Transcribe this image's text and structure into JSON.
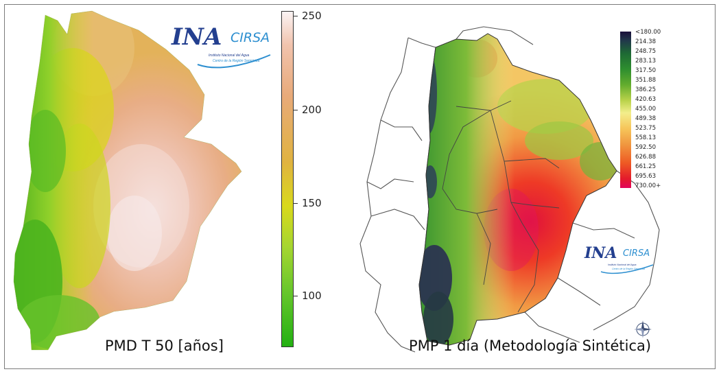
{
  "left_panel": {
    "caption": "PMD T 50 [años]",
    "colorbar": {
      "ticks": [
        "250",
        "200",
        "150",
        "100"
      ],
      "tick_values": [
        250,
        200,
        150,
        100
      ],
      "range": [
        72,
        250
      ],
      "colors": [
        "#23b012",
        "#66c62c",
        "#d9d91c",
        "#e0b340",
        "#e8aa7a",
        "#fbf4f4"
      ]
    },
    "logo": {
      "main": "INA",
      "sub_brand": "CIRSA",
      "line1": "Instituto Nacional del Agua",
      "line2": "Centro de la Región Semiárida"
    }
  },
  "right_panel": {
    "caption": "PMP 1 día (Metodología Sintética)",
    "legend": {
      "labels": [
        "<180.00",
        "214.38",
        "248.75",
        "283.13",
        "317.50",
        "351.88",
        "386.25",
        "420.63",
        "455.00",
        "489.38",
        "523.75",
        "558.13",
        "592.50",
        "626.88",
        "661.25",
        "695.63",
        "730.00+"
      ],
      "colors": [
        "#1a0f3a",
        "#1e6a34",
        "#63ac2e",
        "#f3ee8c",
        "#f09840",
        "#e41b2b",
        "#e2065b"
      ]
    },
    "logo": {
      "main": "INA",
      "sub_brand": "CIRSA",
      "line1": "Instituto Nacional del Agua",
      "line2": "Centro de la Región Semiárida"
    },
    "compass": "compass-rose-icon"
  }
}
